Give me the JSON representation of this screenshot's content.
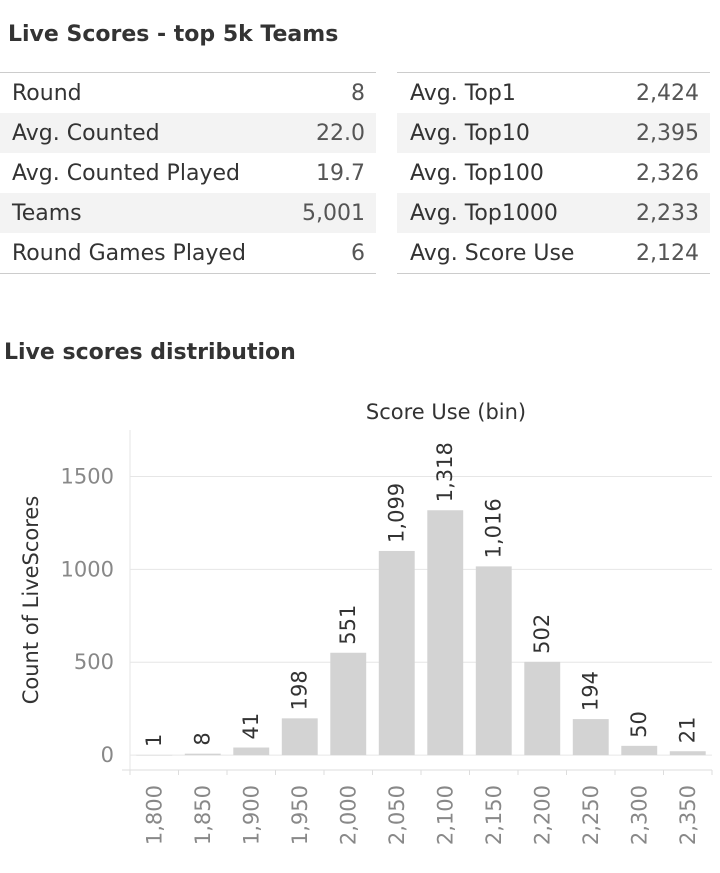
{
  "title": "Live Scores - top 5k Teams",
  "stats_left": [
    {
      "label": "Round",
      "value": "8"
    },
    {
      "label": "Avg. Counted",
      "value": "22.0"
    },
    {
      "label": "Avg. Counted Played",
      "value": "19.7"
    },
    {
      "label": "Teams",
      "value": "5,001"
    },
    {
      "label": "Round Games Played",
      "value": "6"
    }
  ],
  "stats_right": [
    {
      "label": "Avg. Top1",
      "value": "2,424"
    },
    {
      "label": "Avg. Top10",
      "value": "2,395"
    },
    {
      "label": "Avg. Top100",
      "value": "2,326"
    },
    {
      "label": "Avg. Top1000",
      "value": "2,233"
    },
    {
      "label": "Avg. Score Use",
      "value": "2,124"
    }
  ],
  "distribution_title": "Live scores distribution",
  "colors": {
    "bar": "#d3d3d3",
    "grid": "#e6e6e6",
    "axis_text": "#888888"
  },
  "chart_data": {
    "type": "bar",
    "title": "Score Use (bin)",
    "xlabel": "",
    "ylabel": "Count of LiveScores",
    "categories": [
      "1,800",
      "1,850",
      "1,900",
      "1,950",
      "2,000",
      "2,050",
      "2,100",
      "2,150",
      "2,200",
      "2,250",
      "2,300",
      "2,350"
    ],
    "values": [
      1,
      8,
      41,
      198,
      551,
      1099,
      1318,
      1016,
      502,
      194,
      50,
      21
    ],
    "value_labels": [
      "1",
      "8",
      "41",
      "198",
      "551",
      "1,099",
      "1,318",
      "1,016",
      "502",
      "194",
      "50",
      "21"
    ],
    "yticks": [
      0,
      500,
      1000,
      1500
    ],
    "ylim": [
      -80,
      1750
    ],
    "grid": true
  }
}
